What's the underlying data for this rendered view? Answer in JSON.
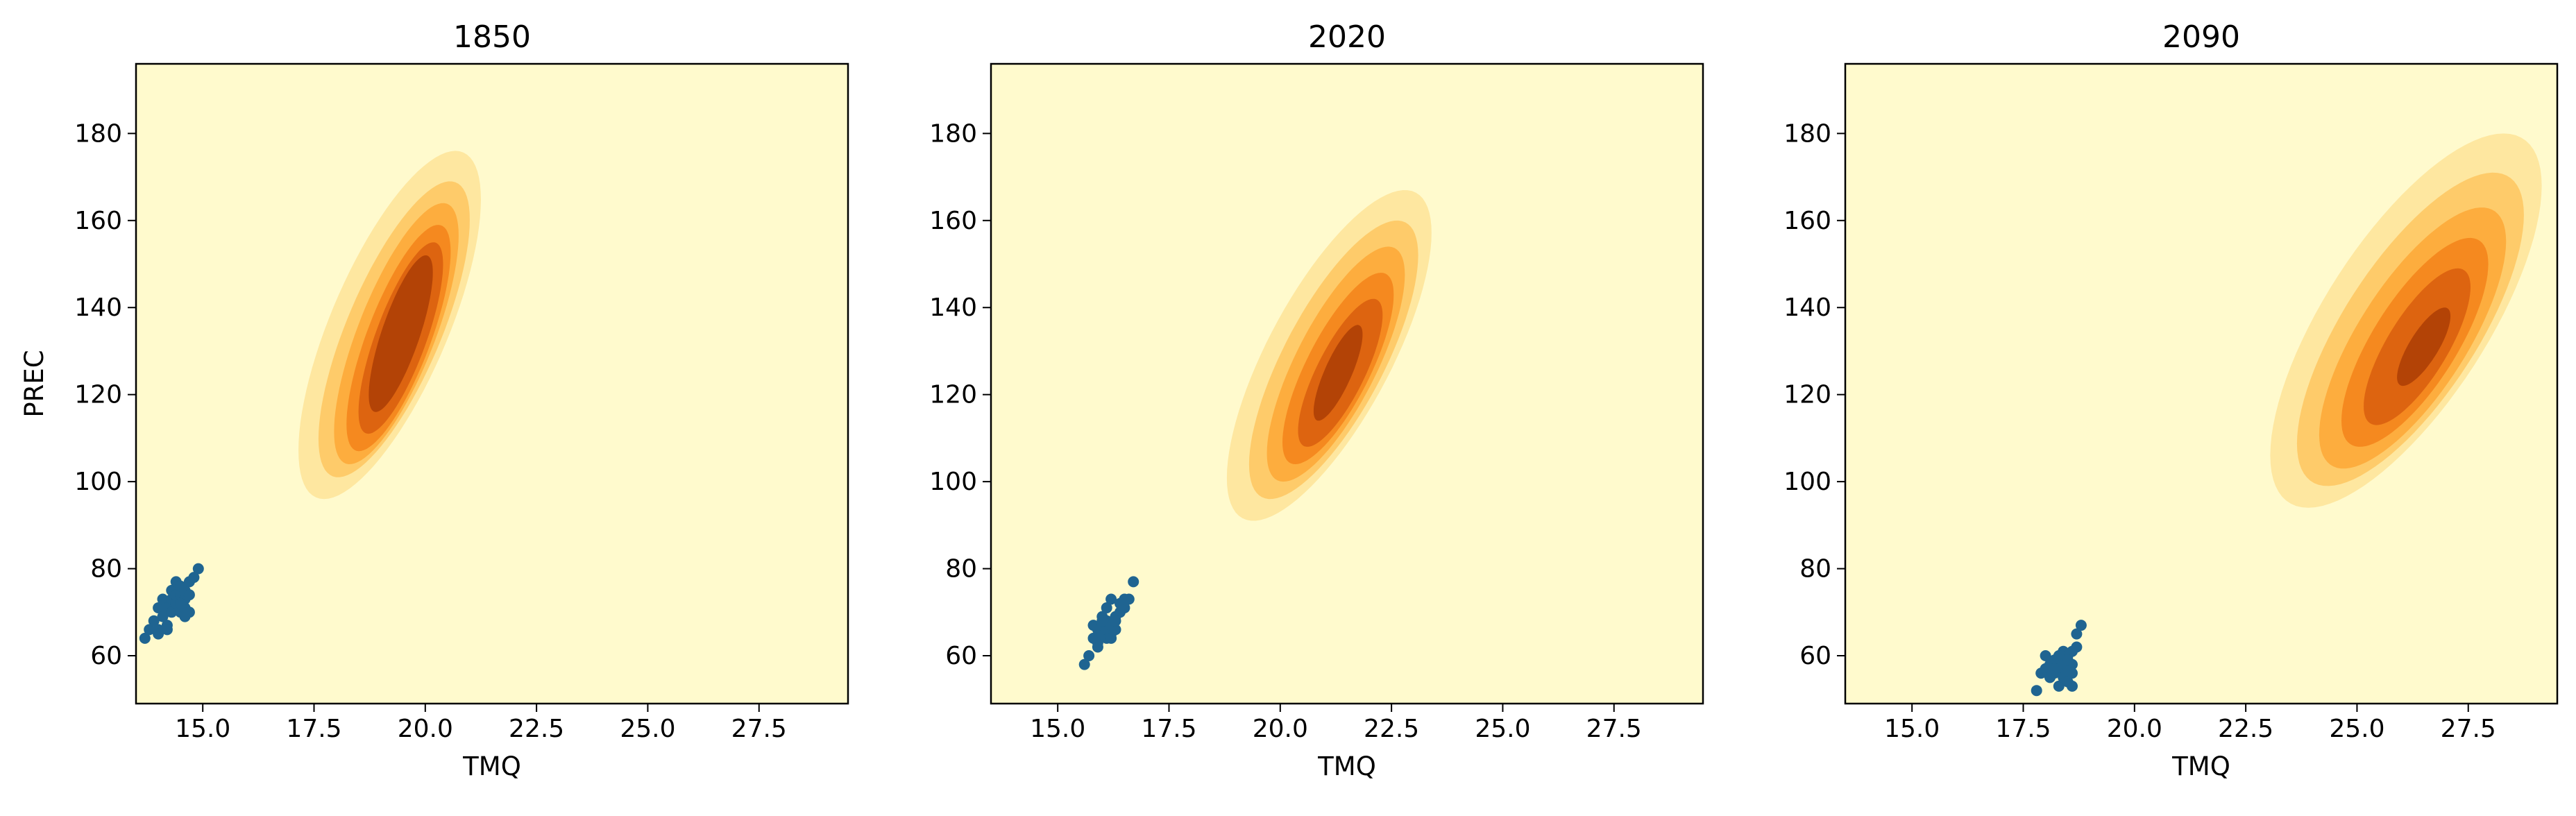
{
  "chart_data": [
    {
      "type": "scatter",
      "title": "1850",
      "xlabel": "TMQ",
      "ylabel": "PREC",
      "xlim": [
        13.5,
        29.5
      ],
      "ylim": [
        49,
        196
      ],
      "xticks": [
        15.0,
        17.5,
        20.0,
        22.5,
        25.0,
        27.5
      ],
      "xtick_labels": [
        "15.0",
        "17.5",
        "20.0",
        "22.5",
        "25.0",
        "27.5"
      ],
      "yticks": [
        60,
        80,
        100,
        120,
        140,
        160,
        180
      ],
      "ytick_labels": [
        "60",
        "80",
        "100",
        "120",
        "140",
        "160",
        "180"
      ],
      "grid": false,
      "kde_contours": {
        "levels": [
          {
            "center": [
              19.2,
              136
            ],
            "sx": 2.05,
            "sy": 40,
            "rho": 0.72
          },
          {
            "center": [
              19.3,
              135
            ],
            "sx": 1.7,
            "sy": 34,
            "rho": 0.74
          },
          {
            "center": [
              19.35,
              134
            ],
            "sx": 1.4,
            "sy": 30,
            "rho": 0.75
          },
          {
            "center": [
              19.4,
              133
            ],
            "sx": 1.17,
            "sy": 26,
            "rho": 0.76
          },
          {
            "center": [
              19.45,
              133
            ],
            "sx": 0.95,
            "sy": 22,
            "rho": 0.77
          },
          {
            "center": [
              19.45,
              134
            ],
            "sx": 0.72,
            "sy": 18,
            "rho": 0.78
          }
        ]
      },
      "series": [
        {
          "x": [
            13.7,
            13.8,
            13.9,
            14.0,
            14.0,
            14.1,
            14.1,
            14.2,
            14.2,
            14.3,
            14.3,
            14.3,
            14.4,
            14.4,
            14.4,
            14.5,
            14.5,
            14.5,
            14.6,
            14.6,
            14.6,
            14.7,
            14.7,
            14.7,
            14.8,
            14.9,
            14.2,
            14.5,
            14.0,
            14.6
          ],
          "y": [
            64,
            66,
            68,
            66,
            71,
            69,
            73,
            67,
            71,
            70,
            73,
            75,
            72,
            74,
            77,
            70,
            74,
            76,
            71,
            73,
            75,
            70,
            74,
            77,
            78,
            80,
            66,
            72,
            65,
            69
          ]
        }
      ]
    },
    {
      "type": "scatter",
      "title": "2020",
      "xlabel": "TMQ",
      "ylabel": "",
      "xlim": [
        13.5,
        29.5
      ],
      "ylim": [
        49,
        196
      ],
      "xticks": [
        15.0,
        17.5,
        20.0,
        22.5,
        25.0,
        27.5
      ],
      "xtick_labels": [
        "15.0",
        "17.5",
        "20.0",
        "22.5",
        "25.0",
        "27.5"
      ],
      "yticks": [
        60,
        80,
        100,
        120,
        140,
        160,
        180
      ],
      "ytick_labels": [
        "60",
        "80",
        "100",
        "120",
        "140",
        "160",
        "180"
      ],
      "grid": false,
      "kde_contours": {
        "levels": [
          {
            "center": [
              21.1,
              129
            ],
            "sx": 2.3,
            "sy": 38,
            "rho": 0.74
          },
          {
            "center": [
              21.2,
              128
            ],
            "sx": 1.9,
            "sy": 32,
            "rho": 0.75
          },
          {
            "center": [
              21.25,
              127
            ],
            "sx": 1.55,
            "sy": 27,
            "rho": 0.76
          },
          {
            "center": [
              21.3,
              126
            ],
            "sx": 1.25,
            "sy": 22,
            "rho": 0.77
          },
          {
            "center": [
              21.35,
              125
            ],
            "sx": 0.95,
            "sy": 17,
            "rho": 0.78
          },
          {
            "center": [
              21.3,
              125
            ],
            "sx": 0.55,
            "sy": 11,
            "rho": 0.8
          }
        ]
      },
      "series": [
        {
          "x": [
            15.6,
            15.7,
            15.8,
            15.8,
            15.9,
            15.9,
            16.0,
            16.0,
            16.0,
            16.1,
            16.1,
            16.1,
            16.2,
            16.2,
            16.2,
            16.3,
            16.3,
            16.4,
            16.4,
            16.5,
            16.5,
            16.6,
            16.7,
            15.9,
            16.0,
            16.2,
            16.1,
            16.3
          ],
          "y": [
            58,
            60,
            64,
            67,
            63,
            66,
            65,
            67,
            69,
            64,
            66,
            68,
            65,
            67,
            73,
            66,
            69,
            70,
            72,
            71,
            73,
            73,
            77,
            62,
            68,
            64,
            71,
            68
          ]
        }
      ]
    },
    {
      "type": "scatter",
      "title": "2090",
      "xlabel": "TMQ",
      "ylabel": "",
      "xlim": [
        13.5,
        29.5
      ],
      "ylim": [
        49,
        196
      ],
      "xticks": [
        15.0,
        17.5,
        20.0,
        22.5,
        25.0,
        27.5
      ],
      "xtick_labels": [
        "15.0",
        "17.5",
        "20.0",
        "22.5",
        "25.0",
        "27.5"
      ],
      "yticks": [
        60,
        80,
        100,
        120,
        140,
        160,
        180
      ],
      "ytick_labels": [
        "60",
        "80",
        "100",
        "120",
        "140",
        "160",
        "180"
      ],
      "grid": false,
      "kde_contours": {
        "levels": [
          {
            "center": [
              26.1,
              137
            ],
            "sx": 3.05,
            "sy": 43,
            "rho": 0.72
          },
          {
            "center": [
              26.2,
              135
            ],
            "sx": 2.55,
            "sy": 36,
            "rho": 0.73
          },
          {
            "center": [
              26.25,
              133
            ],
            "sx": 2.1,
            "sy": 30,
            "rho": 0.74
          },
          {
            "center": [
              26.3,
              132
            ],
            "sx": 1.65,
            "sy": 24,
            "rho": 0.75
          },
          {
            "center": [
              26.35,
              131
            ],
            "sx": 1.2,
            "sy": 18,
            "rho": 0.76
          },
          {
            "center": [
              26.5,
              131
            ],
            "sx": 0.6,
            "sy": 9,
            "rho": 0.78
          }
        ]
      },
      "series": [
        {
          "x": [
            17.8,
            17.9,
            18.0,
            18.0,
            18.1,
            18.1,
            18.2,
            18.2,
            18.3,
            18.3,
            18.4,
            18.4,
            18.4,
            18.5,
            18.5,
            18.5,
            18.6,
            18.6,
            18.6,
            18.7,
            18.7,
            18.8,
            18.3,
            18.5,
            18.2,
            18.6
          ],
          "y": [
            52,
            56,
            60,
            57,
            55,
            58,
            56,
            59,
            53,
            57,
            61,
            58,
            55,
            60,
            57,
            54,
            61,
            58,
            53,
            65,
            62,
            67,
            60,
            59,
            57,
            56
          ]
        }
      ]
    }
  ],
  "colors": {
    "background": "#fffacd",
    "levels": [
      "#fee7a0",
      "#fecb6a",
      "#fdad3e",
      "#f5891f",
      "#dd6410",
      "#b34306",
      "#832b05"
    ],
    "points": "#1f6491",
    "axis": "#000000"
  }
}
